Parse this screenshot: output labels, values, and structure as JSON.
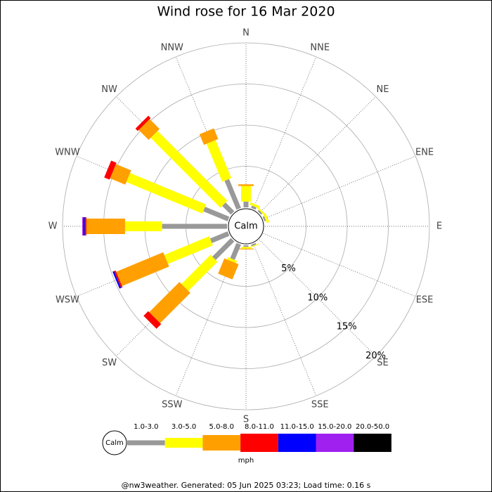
{
  "chart_data": {
    "type": "windrose",
    "title": "Wind rose for 16 Mar 2020",
    "categories": [
      "N",
      "NNE",
      "NE",
      "ENE",
      "E",
      "ESE",
      "SE",
      "SSE",
      "S",
      "SSW",
      "SW",
      "WSW",
      "W",
      "WNW",
      "NW",
      "NNW"
    ],
    "center_label": "Calm",
    "unit_label": "mph",
    "rlim": [
      0,
      20
    ],
    "rticks": [
      {
        "value": 5,
        "label": "5%"
      },
      {
        "value": 10,
        "label": "10%"
      },
      {
        "value": 15,
        "label": "15%"
      },
      {
        "value": 20,
        "label": "20%"
      }
    ],
    "series": [
      {
        "name": "1.0-3.0",
        "color": "#999999",
        "values": [
          0.7,
          0.3,
          0.2,
          0.2,
          0,
          0,
          0,
          0.2,
          0.2,
          2.0,
          3.2,
          2.3,
          7.9,
          3.2,
          1.5,
          3.8
        ]
      },
      {
        "name": "3.0-5.0",
        "color": "#ffff00",
        "values": [
          1.9,
          0.3,
          0.2,
          0.3,
          0,
          0,
          0,
          0.1,
          0.2,
          0.3,
          5.0,
          5.9,
          4.5,
          10.0,
          12.0,
          5.0
        ]
      },
      {
        "name": "5.0-8.0",
        "color": "#ffa000",
        "values": [
          0.2,
          0,
          0,
          0,
          0,
          0,
          0,
          0,
          0.1,
          2.0,
          5.2,
          6.2,
          4.7,
          2.0,
          1.7,
          1.4
        ]
      },
      {
        "name": "8.0-11.0",
        "color": "#ff0000",
        "values": [
          0,
          0,
          0,
          0,
          0,
          0,
          0,
          0,
          0,
          0,
          0.8,
          0.2,
          0.2,
          0.7,
          0.4,
          0
        ]
      },
      {
        "name": "11.0-15.0",
        "color": "#0000ff",
        "values": [
          0,
          0,
          0,
          0,
          0,
          0,
          0,
          0,
          0,
          0,
          0,
          0.2,
          0.2,
          0,
          0,
          0
        ]
      },
      {
        "name": "15.0-20.0",
        "color": "#a020f0",
        "values": [
          0,
          0,
          0,
          0,
          0,
          0,
          0,
          0,
          0,
          0,
          0,
          0,
          0.1,
          0,
          0,
          0
        ]
      },
      {
        "name": "20.0-50.0",
        "color": "#000000",
        "values": [
          0,
          0,
          0,
          0,
          0,
          0,
          0,
          0,
          0,
          0,
          0,
          0,
          0,
          0,
          0,
          0
        ]
      }
    ],
    "footer": "@nw3weather. Generated: 05 Jun 2025 03:23; Load time: 0.16 s"
  }
}
